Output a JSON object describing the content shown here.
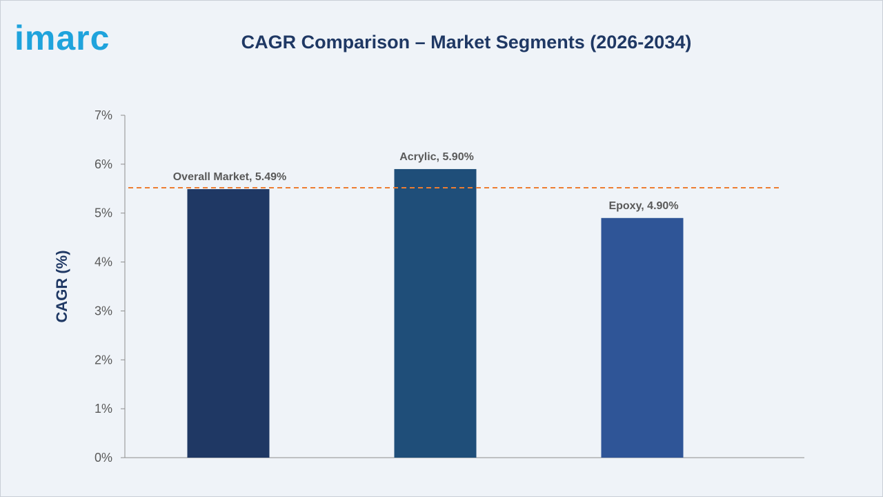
{
  "brand": {
    "name": "imarc",
    "color": "#1fa3dc"
  },
  "title": "CAGR Comparison – Market Segments (2026-2034)",
  "colors": {
    "title": "#1f3864",
    "axis": "#8c8c8c",
    "tick_text": "#595959",
    "label_text": "#595959",
    "ref_line": "#ed7d31"
  },
  "chart_data": {
    "type": "bar",
    "title": "CAGR Comparison – Market Segments (2026-2034)",
    "ylabel": "CAGR (%)",
    "xlabel": "",
    "ylim": [
      0,
      7
    ],
    "yticks": [
      0,
      1,
      2,
      3,
      4,
      5,
      6,
      7
    ],
    "ytick_labels": [
      "0%",
      "1%",
      "2%",
      "3%",
      "4%",
      "5%",
      "6%",
      "7%"
    ],
    "categories": [
      "Overall Market",
      "Acrylic",
      "Epoxy"
    ],
    "values": [
      5.49,
      5.9,
      4.9
    ],
    "data_labels": [
      "Overall Market, 5.49%",
      "Acrylic, 5.90%",
      "Epoxy, 4.90%"
    ],
    "bar_colors": [
      "#1f3864",
      "#1f4e79",
      "#2f5597"
    ],
    "reference_line": {
      "value": 5.49,
      "style": "dashed"
    },
    "grid": false,
    "legend": "none"
  }
}
